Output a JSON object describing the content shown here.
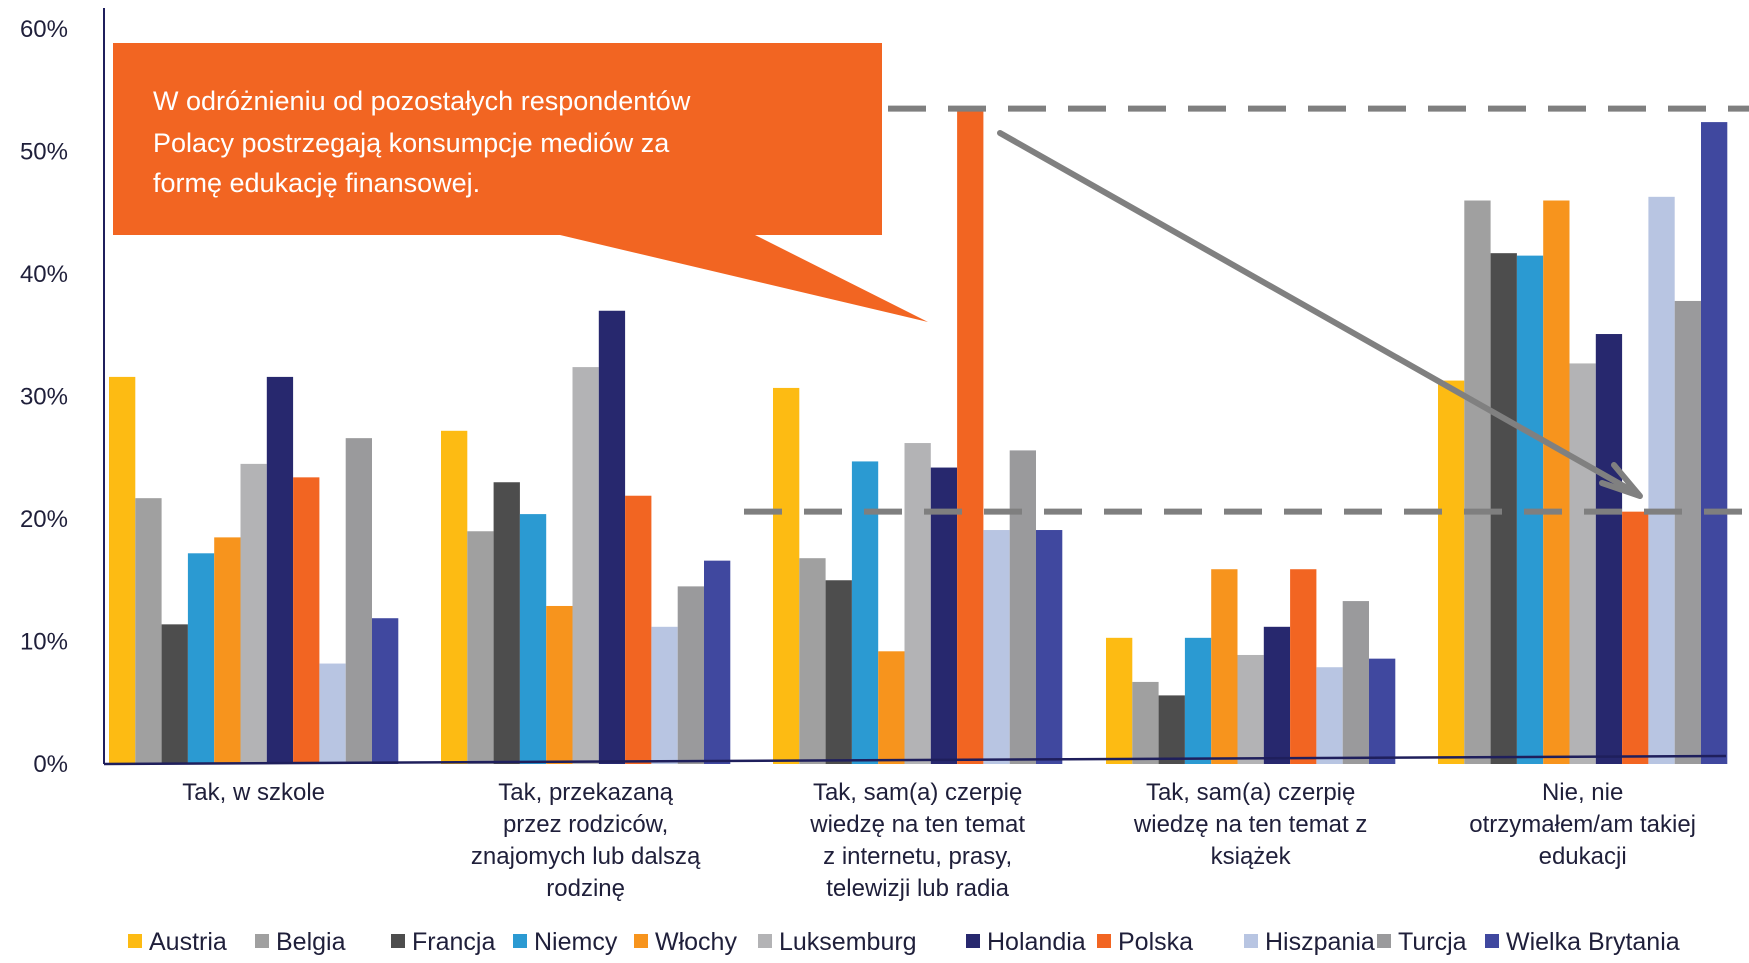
{
  "chart_data": {
    "type": "bar",
    "categories": [
      "Tak, w szkole",
      "Tak, przekazaną przez rodziców, znajomych lub dalszą rodzinę",
      "Tak, sam(a) czerpię wiedzę na ten temat z internetu, prasy, telewizji lub radia",
      "Tak, sam(a) czerpię wiedzę na ten temat z książek",
      "Nie, nie otrzymałem/am takiej edukacji"
    ],
    "category_lines": [
      [
        "Tak, w szkole"
      ],
      [
        "Tak, przekazaną",
        "przez rodziców,",
        "znajomych lub dalszą",
        "rodzinę"
      ],
      [
        "Tak, sam(a) czerpię",
        "wiedzę na ten temat",
        "z internetu, prasy,",
        "telewizji lub radia"
      ],
      [
        "Tak, sam(a) czerpię",
        "wiedzę na ten temat z",
        "książek"
      ],
      [
        "Nie, nie",
        "otrzymałem/am takiej",
        "edukacji"
      ]
    ],
    "series": [
      {
        "name": "Austria",
        "color": "#FDBB13",
        "values": [
          31.6,
          27.2,
          30.7,
          10.3,
          31.3
        ]
      },
      {
        "name": "Belgia",
        "color": "#A0A0A0",
        "values": [
          21.7,
          19.0,
          16.8,
          6.7,
          46.0
        ]
      },
      {
        "name": "Francja",
        "color": "#4D4D4D",
        "values": [
          11.4,
          23.0,
          15.0,
          5.6,
          41.7
        ]
      },
      {
        "name": "Niemcy",
        "color": "#2B9AD2",
        "values": [
          17.2,
          20.4,
          24.7,
          10.3,
          41.5
        ]
      },
      {
        "name": "Włochy",
        "color": "#F7941D",
        "values": [
          18.5,
          12.9,
          9.2,
          15.9,
          46.0
        ]
      },
      {
        "name": "Luksemburg",
        "color": "#B3B3B5",
        "values": [
          24.5,
          32.4,
          26.2,
          8.9,
          32.7
        ]
      },
      {
        "name": "Holandia",
        "color": "#27286E",
        "values": [
          31.6,
          37.0,
          24.2,
          11.2,
          35.1
        ]
      },
      {
        "name": "Polska",
        "color": "#F26522",
        "values": [
          23.4,
          21.9,
          53.5,
          15.9,
          20.6
        ]
      },
      {
        "name": "Hiszpania",
        "color": "#B8C5E2",
        "values": [
          8.2,
          11.2,
          19.1,
          7.9,
          46.3
        ]
      },
      {
        "name": "Turcja",
        "color": "#9A9A9C",
        "values": [
          26.6,
          14.5,
          25.6,
          13.3,
          37.8
        ]
      },
      {
        "name": "Wielka Brytania",
        "color": "#40489F",
        "values": [
          11.9,
          16.6,
          19.1,
          8.6,
          52.4
        ]
      }
    ],
    "yticks": [
      "0%",
      "10%",
      "20%",
      "30%",
      "40%",
      "50%",
      "60%"
    ],
    "ylim": [
      0,
      60
    ],
    "grid": false,
    "legend_position": "bottom",
    "reference_lines": [
      53.5,
      20.6
    ],
    "title": "",
    "xlabel": "",
    "ylabel": ""
  },
  "callout": {
    "lines": [
      "W odróżnieniu od pozostałych respondentów",
      "Polacy postrzegają konsumpcje mediów za",
      "formę edukację finansowej."
    ],
    "color": "#F26522"
  },
  "colors": {
    "reference_line": "#7F7F7F",
    "arrow": "#808080",
    "axis": "#1F1F5C"
  }
}
